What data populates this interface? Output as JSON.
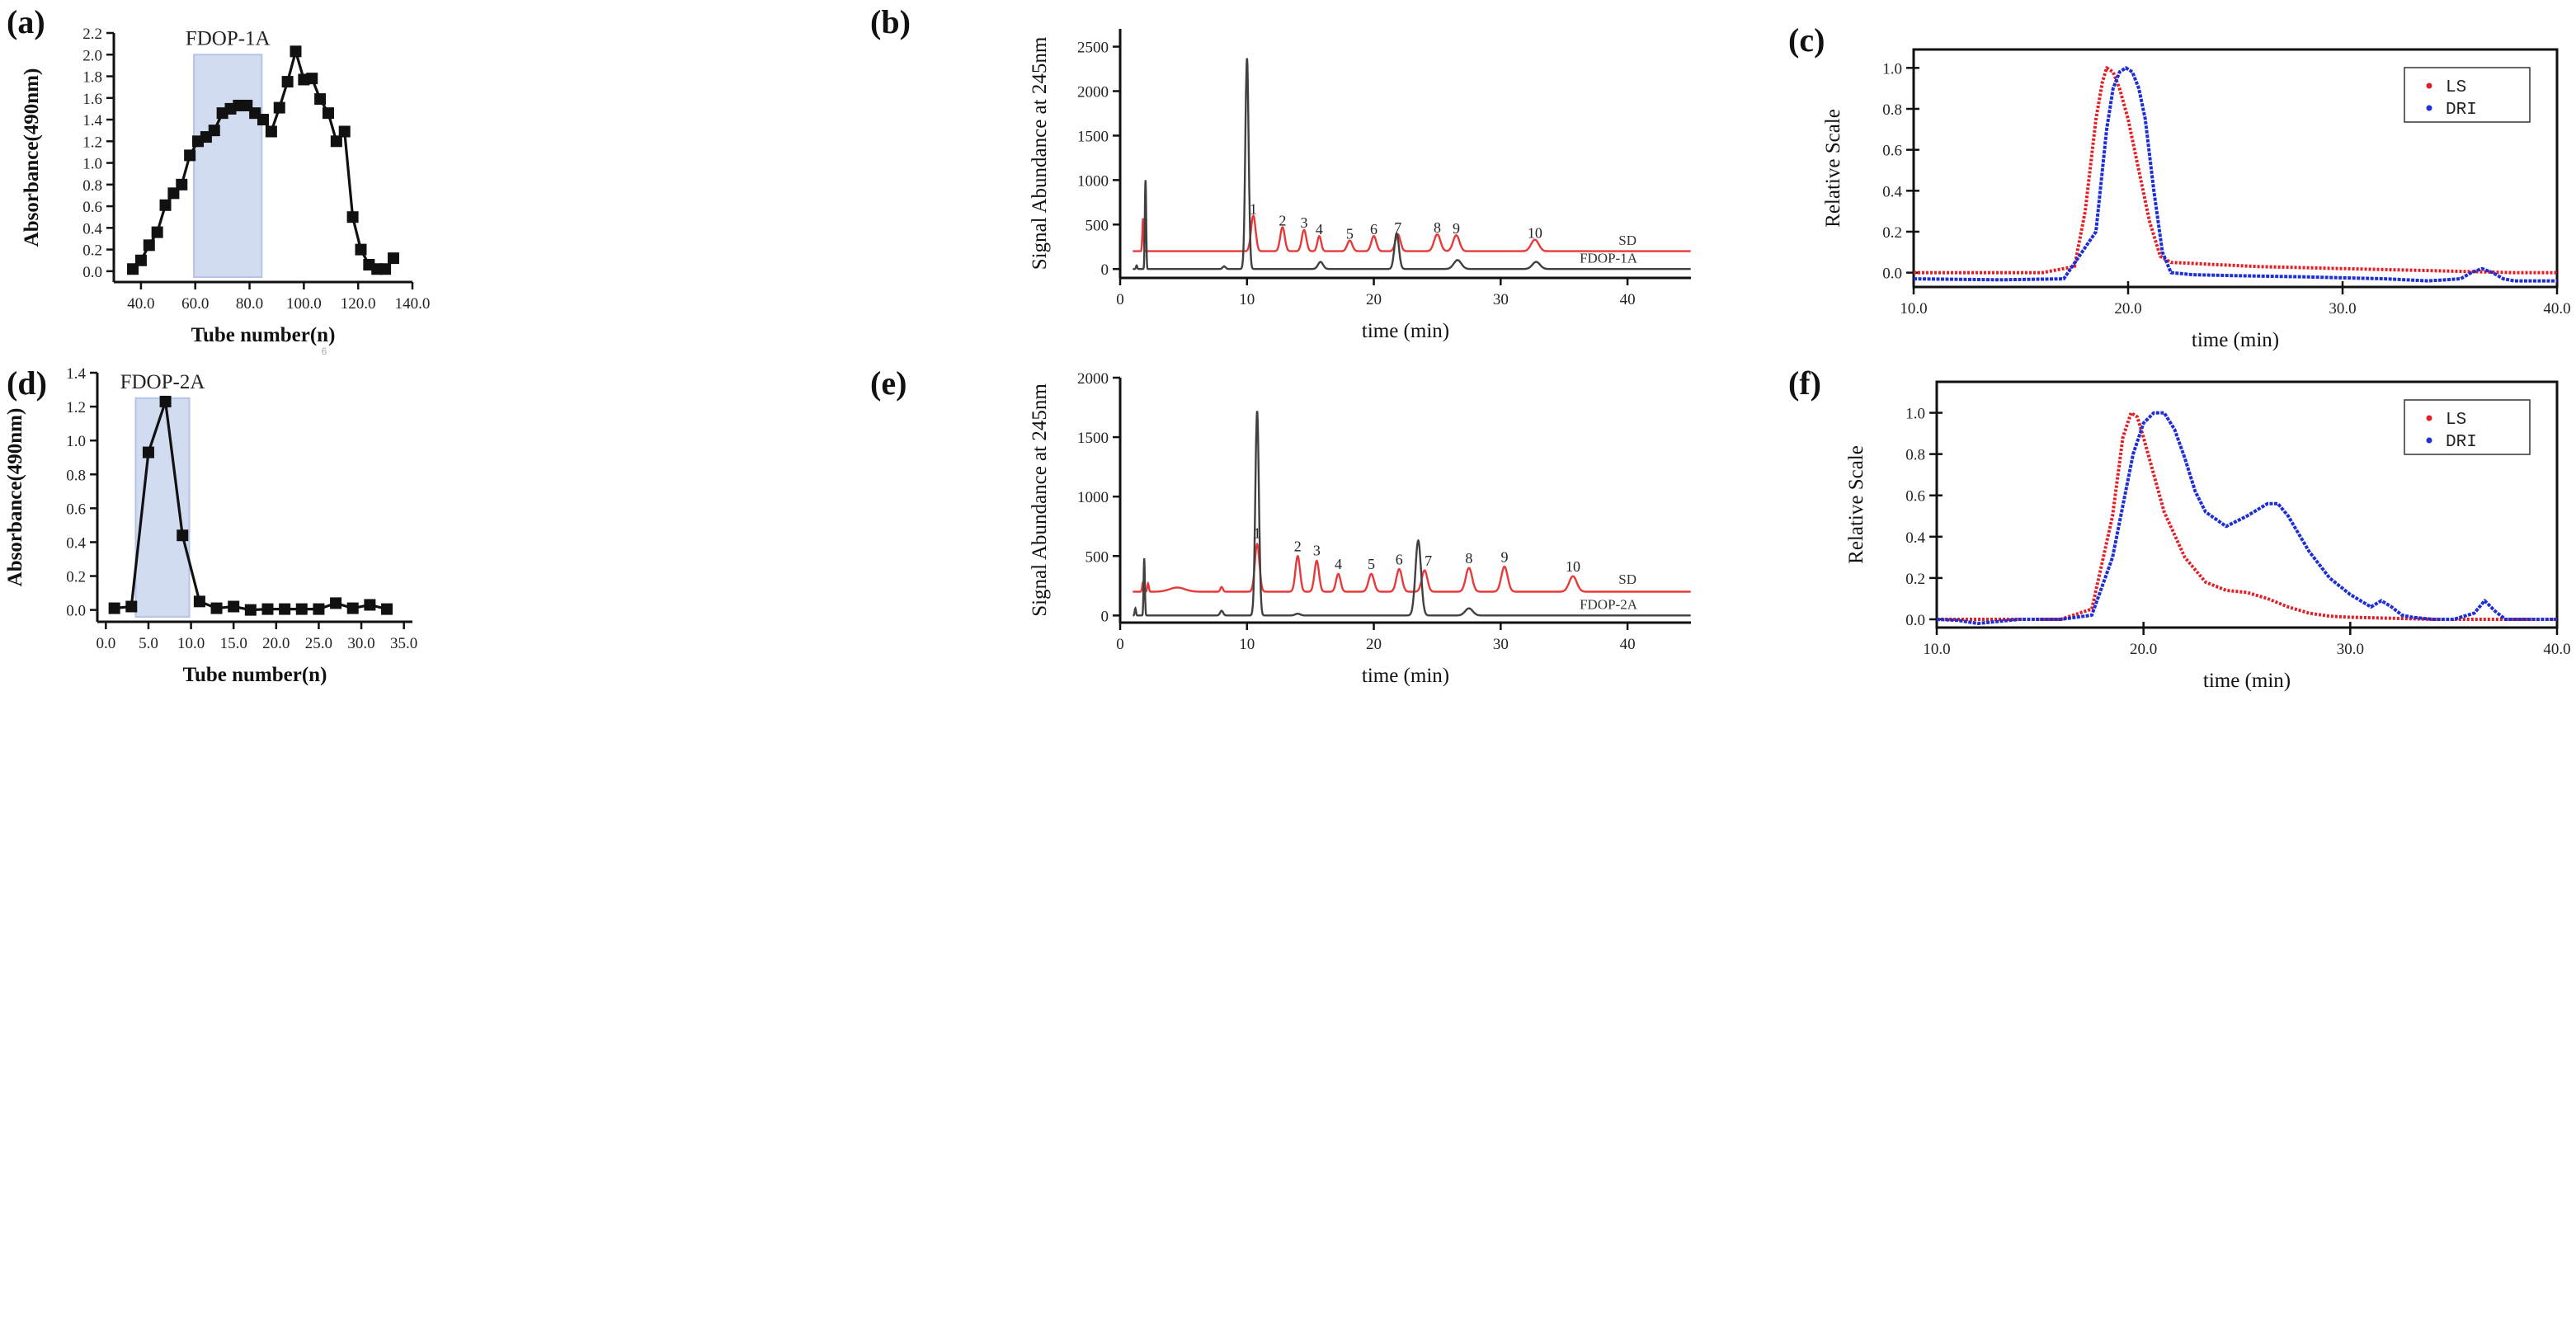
{
  "chart_data": [
    {
      "panel": "(a)",
      "type": "line",
      "xlabel": "Tube number(n)",
      "ylabel": "Absorbance(490nm)",
      "xlim": [
        30,
        140
      ],
      "ylim": [
        -0.1,
        2.2
      ],
      "xticks": [
        40,
        60,
        80,
        100,
        120,
        140
      ],
      "yticks": [
        0.0,
        0.2,
        0.4,
        0.6,
        0.8,
        1.0,
        1.2,
        1.4,
        1.6,
        1.8,
        2.0,
        2.2
      ],
      "tick_decimals": 1,
      "marker": "square",
      "highlight": {
        "label": "FDOP-1A",
        "from": 59.5,
        "to": 84.5,
        "y_top": 2.0
      },
      "x": [
        37,
        40,
        43,
        46,
        49,
        52,
        55,
        58,
        61,
        64,
        67,
        70,
        73,
        76,
        79,
        82,
        85,
        88,
        91,
        94,
        97,
        100,
        103,
        106,
        109,
        112,
        115,
        118,
        121,
        124,
        127,
        130,
        133
      ],
      "y": [
        0.02,
        0.1,
        0.24,
        0.36,
        0.61,
        0.72,
        0.8,
        1.07,
        1.2,
        1.24,
        1.3,
        1.46,
        1.5,
        1.53,
        1.53,
        1.46,
        1.4,
        1.29,
        1.51,
        1.75,
        2.03,
        1.77,
        1.78,
        1.59,
        1.46,
        1.2,
        1.29,
        0.5,
        0.2,
        0.06,
        0.02,
        0.02,
        0.12
      ],
      "stray_text": "6"
    },
    {
      "panel": "(b)",
      "type": "line",
      "xlabel": "time (min)",
      "ylabel": "Signal Abundance at 245nm",
      "xlim": [
        0,
        45
      ],
      "ylim": [
        -100,
        2700
      ],
      "xticks": [
        0,
        10,
        20,
        30,
        40
      ],
      "yticks": [
        0,
        500,
        1000,
        1500,
        2000,
        2500
      ],
      "series": [
        {
          "name": "SD",
          "color": "#e8393a",
          "baseline": 200,
          "peaks": [
            [
              1.8,
              370,
              0.05
            ],
            [
              10.5,
              400,
              0.18
            ],
            [
              12.8,
              270,
              0.18
            ],
            [
              14.5,
              240,
              0.18
            ],
            [
              15.7,
              170,
              0.15
            ],
            [
              18.1,
              120,
              0.2
            ],
            [
              20.0,
              170,
              0.2
            ],
            [
              21.9,
              190,
              0.2
            ],
            [
              25.0,
              190,
              0.25
            ],
            [
              26.5,
              180,
              0.25
            ],
            [
              32.7,
              130,
              0.3
            ]
          ]
        },
        {
          "name": "FDOP-1A",
          "color": "#404040",
          "baseline": 0,
          "peaks": [
            [
              1.3,
              40,
              0.05
            ],
            [
              2.0,
              1000,
              0.05
            ],
            [
              8.2,
              30,
              0.12
            ],
            [
              10.0,
              2370,
              0.13
            ],
            [
              15.8,
              80,
              0.2
            ],
            [
              21.8,
              400,
              0.18
            ],
            [
              26.6,
              100,
              0.3
            ],
            [
              32.8,
              80,
              0.3
            ]
          ]
        }
      ],
      "peak_labels": [
        {
          "text": "1",
          "x": 10.5,
          "y": 620
        },
        {
          "text": "2",
          "x": 12.8,
          "y": 490
        },
        {
          "text": "3",
          "x": 14.5,
          "y": 465
        },
        {
          "text": "4",
          "x": 15.7,
          "y": 390
        },
        {
          "text": "5",
          "x": 18.1,
          "y": 340
        },
        {
          "text": "6",
          "x": 20.0,
          "y": 390
        },
        {
          "text": "7",
          "x": 21.9,
          "y": 410
        },
        {
          "text": "8",
          "x": 25.0,
          "y": 410
        },
        {
          "text": "9",
          "x": 26.5,
          "y": 400
        },
        {
          "text": "10",
          "x": 32.7,
          "y": 350
        }
      ],
      "trace_labels": [
        {
          "text": "SD",
          "x": 40.0,
          "y": 270
        },
        {
          "text": "FDOP-1A",
          "x": 38.5,
          "y": 70
        }
      ]
    },
    {
      "panel": "(c)",
      "type": "line",
      "xlabel": "time (min)",
      "ylabel": "Relative Scale",
      "xlim": [
        10,
        40
      ],
      "ylim": [
        -0.07,
        1.09
      ],
      "xticks": [
        10,
        20,
        30,
        40
      ],
      "yticks": [
        0.0,
        0.2,
        0.4,
        0.6,
        0.8,
        1.0
      ],
      "tick_decimals": 1,
      "legend": [
        {
          "name": "LS",
          "color": "#e21f26",
          "style": "dotted"
        },
        {
          "name": "DRI",
          "color": "#1f2fd6",
          "style": "dotted"
        }
      ],
      "series": [
        {
          "name": "LS",
          "color": "#e21f26",
          "x": [
            10,
            16,
            17.5,
            18,
            18.5,
            18.8,
            19.0,
            19.3,
            19.6,
            20.0,
            20.5,
            21.0,
            21.5,
            22.0,
            24.0,
            26.0,
            30.0,
            34.0,
            38.0,
            40.0
          ],
          "y": [
            0.0,
            0.0,
            0.03,
            0.3,
            0.75,
            0.93,
            1.0,
            0.98,
            0.9,
            0.75,
            0.5,
            0.25,
            0.08,
            0.05,
            0.04,
            0.03,
            0.02,
            0.01,
            0.0,
            0.0
          ]
        },
        {
          "name": "DRI",
          "color": "#1f2fd6",
          "x": [
            10,
            14,
            17,
            18.5,
            19.0,
            19.3,
            19.6,
            19.9,
            20.2,
            20.5,
            20.8,
            21.2,
            21.6,
            22.0,
            23.0,
            25.0,
            28.0,
            32.0,
            34.0,
            35.5,
            36.0,
            36.5,
            37.0,
            37.5,
            38.0,
            40.0
          ],
          "y": [
            -0.03,
            -0.035,
            -0.03,
            0.2,
            0.7,
            0.9,
            0.98,
            1.0,
            0.98,
            0.9,
            0.75,
            0.4,
            0.1,
            0.0,
            -0.01,
            -0.015,
            -0.02,
            -0.03,
            -0.04,
            -0.03,
            0.0,
            0.02,
            0.0,
            -0.03,
            -0.04,
            -0.04
          ]
        }
      ]
    },
    {
      "panel": "(d)",
      "type": "line",
      "xlabel": "Tube number(n)",
      "ylabel": "Absorbance(490nm)",
      "xlim": [
        -1,
        36
      ],
      "ylim": [
        -0.07,
        1.4
      ],
      "xticks": [
        0,
        5,
        10,
        15,
        20,
        25,
        30,
        35
      ],
      "yticks": [
        0.0,
        0.2,
        0.4,
        0.6,
        0.8,
        1.0,
        1.2,
        1.4
      ],
      "tick_decimals": 1,
      "marker": "square",
      "highlight": {
        "label": "FDOP-2A",
        "from": 3.5,
        "to": 9.8,
        "y_top": 1.25
      },
      "x": [
        1,
        3,
        5,
        7,
        9,
        11,
        13,
        15,
        17,
        19,
        21,
        23,
        25,
        27,
        29,
        31,
        33
      ],
      "y": [
        0.01,
        0.02,
        0.93,
        1.23,
        0.44,
        0.05,
        0.01,
        0.02,
        0.0,
        0.005,
        0.005,
        0.005,
        0.005,
        0.04,
        0.01,
        0.03,
        0.005
      ]
    },
    {
      "panel": "(e)",
      "type": "line",
      "xlabel": "time (min)",
      "ylabel": "Signal Abundance at 245nm",
      "xlim": [
        0,
        45
      ],
      "ylim": [
        -60,
        2000
      ],
      "xticks": [
        0,
        10,
        20,
        30,
        40
      ],
      "yticks": [
        0,
        500,
        1000,
        1500,
        2000
      ],
      "series": [
        {
          "name": "SD",
          "color": "#e8393a",
          "baseline": 200,
          "peaks": [
            [
              1.8,
              80,
              0.06
            ],
            [
              2.2,
              70,
              0.06
            ],
            [
              4.5,
              35,
              0.6
            ],
            [
              8.0,
              40,
              0.1
            ],
            [
              10.8,
              400,
              0.18
            ],
            [
              14.0,
              300,
              0.18
            ],
            [
              15.5,
              260,
              0.18
            ],
            [
              17.2,
              150,
              0.18
            ],
            [
              19.8,
              150,
              0.22
            ],
            [
              22.0,
              190,
              0.22
            ],
            [
              24.0,
              180,
              0.22
            ],
            [
              27.5,
              200,
              0.25
            ],
            [
              30.3,
              210,
              0.25
            ],
            [
              35.7,
              130,
              0.3
            ]
          ]
        },
        {
          "name": "FDOP-2A",
          "color": "#404040",
          "baseline": 0,
          "peaks": [
            [
              1.2,
              60,
              0.05
            ],
            [
              1.9,
              480,
              0.05
            ],
            [
              8.0,
              40,
              0.12
            ],
            [
              10.8,
              1720,
              0.14
            ],
            [
              14.0,
              15,
              0.2
            ],
            [
              23.5,
              630,
              0.22
            ],
            [
              27.5,
              60,
              0.3
            ]
          ]
        }
      ],
      "peak_labels": [
        {
          "text": "1",
          "x": 10.8,
          "y": 650
        },
        {
          "text": "2",
          "x": 14.0,
          "y": 540
        },
        {
          "text": "3",
          "x": 15.5,
          "y": 505
        },
        {
          "text": "4",
          "x": 17.2,
          "y": 390
        },
        {
          "text": "5",
          "x": 19.8,
          "y": 390
        },
        {
          "text": "6",
          "x": 22.0,
          "y": 430
        },
        {
          "text": "7",
          "x": 24.3,
          "y": 420
        },
        {
          "text": "8",
          "x": 27.5,
          "y": 440
        },
        {
          "text": "9",
          "x": 30.3,
          "y": 450
        },
        {
          "text": "10",
          "x": 35.7,
          "y": 370
        }
      ],
      "trace_labels": [
        {
          "text": "SD",
          "x": 40.0,
          "y": 265
        },
        {
          "text": "FDOP-2A",
          "x": 38.5,
          "y": 55
        }
      ]
    },
    {
      "panel": "(f)",
      "type": "line",
      "xlabel": "time (min)",
      "ylabel": "Relative Scale",
      "xlim": [
        10,
        40
      ],
      "ylim": [
        -0.04,
        1.15
      ],
      "xticks": [
        10,
        20,
        30,
        40
      ],
      "yticks": [
        0.0,
        0.2,
        0.4,
        0.6,
        0.8,
        1.0
      ],
      "tick_decimals": 1,
      "legend": [
        {
          "name": "LS",
          "color": "#e21f26",
          "style": "dotted"
        },
        {
          "name": "DRI",
          "color": "#1f2fd6",
          "style": "dotted"
        }
      ],
      "series": [
        {
          "name": "LS",
          "color": "#e21f26",
          "x": [
            10,
            16,
            17.5,
            18.5,
            19.0,
            19.4,
            19.7,
            20.0,
            20.5,
            21.0,
            22.0,
            23.0,
            24.0,
            25.0,
            26.0,
            27.0,
            28.0,
            29.0,
            30.0,
            32.0,
            34.0,
            38.0,
            40.0
          ],
          "y": [
            0.0,
            0.0,
            0.05,
            0.5,
            0.88,
            1.0,
            0.98,
            0.88,
            0.7,
            0.52,
            0.3,
            0.18,
            0.14,
            0.13,
            0.1,
            0.06,
            0.03,
            0.015,
            0.01,
            0.005,
            0.0,
            0.0,
            0.0
          ]
        },
        {
          "name": "DRI",
          "color": "#1f2fd6",
          "x": [
            10,
            11,
            12,
            14,
            16,
            17.5,
            18.5,
            19.5,
            20.0,
            20.5,
            21.0,
            21.5,
            22.0,
            22.5,
            23.0,
            24.0,
            25.0,
            26.0,
            26.5,
            27.0,
            28.0,
            29.0,
            30.0,
            31.0,
            31.5,
            32.0,
            32.5,
            33.0,
            34.0,
            35.0,
            36.0,
            36.5,
            37.0,
            37.5,
            38.0,
            40.0
          ],
          "y": [
            0.0,
            -0.005,
            -0.02,
            0.0,
            0.0,
            0.02,
            0.3,
            0.8,
            0.95,
            1.0,
            1.0,
            0.92,
            0.78,
            0.62,
            0.52,
            0.45,
            0.5,
            0.56,
            0.56,
            0.5,
            0.33,
            0.2,
            0.12,
            0.06,
            0.09,
            0.06,
            0.02,
            0.01,
            0.0,
            0.0,
            0.03,
            0.09,
            0.04,
            0.0,
            0.0,
            0.0
          ]
        }
      ]
    }
  ]
}
